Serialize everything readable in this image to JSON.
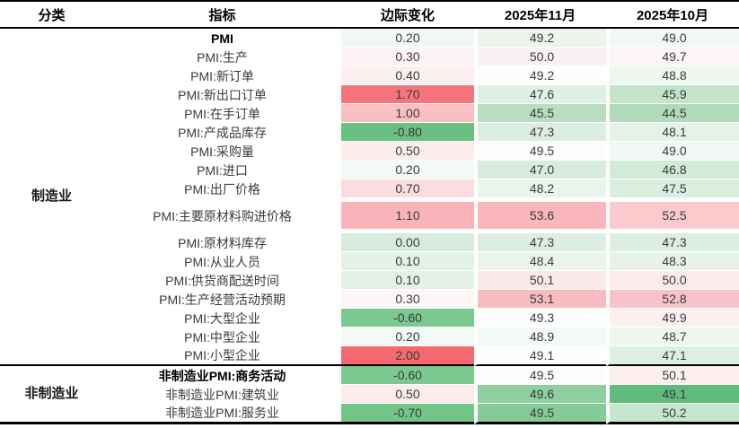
{
  "table": {
    "headers": {
      "category": "分类",
      "indicator": "指标",
      "change": "边际变化",
      "nov": "2025年11月",
      "oct": "2025年10月"
    },
    "sections": [
      {
        "category": "制造业",
        "rows": [
          {
            "indicator": "PMI",
            "bold": true,
            "change": "0.20",
            "change_bg": "#f1f8f3",
            "nov": "49.2",
            "nov_bg": "#ebf5ee",
            "oct": "49.0",
            "oct_bg": "#f2f8f3"
          },
          {
            "indicator": "PMI:生产",
            "change": "0.30",
            "change_bg": "#fdf3f4",
            "nov": "50.0",
            "nov_bg": "#fdf0f2",
            "oct": "49.7",
            "oct_bg": "#fdf4f5"
          },
          {
            "indicator": "PMI:新订单",
            "change": "0.40",
            "change_bg": "#fdeff0",
            "nov": "49.2",
            "nov_bg": "#fefefe",
            "oct": "48.8",
            "oct_bg": "#edf6ef"
          },
          {
            "indicator": "PMI:新出口订单",
            "change": "1.70",
            "change_bg": "#f5757d",
            "nov": "47.6",
            "nov_bg": "#dff0e4",
            "oct": "45.9",
            "oct_bg": "#c3e3cb"
          },
          {
            "indicator": "PMI:在手订单",
            "change": "1.00",
            "change_bg": "#f9c0c4",
            "nov": "45.5",
            "nov_bg": "#b8ddc1",
            "oct": "44.5",
            "oct_bg": "#b1dabb"
          },
          {
            "indicator": "PMI:产成品库存",
            "change": "-0.80",
            "change_bg": "#69c081",
            "nov": "47.3",
            "nov_bg": "#dceee1",
            "oct": "48.1",
            "oct_bg": "#e4f2e7"
          },
          {
            "indicator": "PMI:采购量",
            "change": "0.50",
            "change_bg": "#fcecec",
            "nov": "49.5",
            "nov_bg": "#fbfdfb",
            "oct": "49.0",
            "oct_bg": "#f2f8f3"
          },
          {
            "indicator": "PMI:进口",
            "change": "0.20",
            "change_bg": "#f3f9f4",
            "nov": "47.0",
            "nov_bg": "#d8ecdd",
            "oct": "46.8",
            "oct_bg": "#d2ead8"
          },
          {
            "indicator": "PMI:出厂价格",
            "change": "0.70",
            "change_bg": "#fadde0",
            "nov": "48.2",
            "nov_bg": "#e9f4ec",
            "oct": "47.5",
            "oct_bg": "#daeedf"
          },
          {
            "indicator": "PMI:主要原材料购进价格",
            "tall": true,
            "change": "1.10",
            "change_bg": "#f9b4b9",
            "nov": "53.6",
            "nov_bg": "#f9b7bb",
            "oct": "52.5",
            "oct_bg": "#facacd"
          },
          {
            "indicator": "PMI:原材料库存",
            "change": "0.00",
            "change_bg": "#d8ecdd",
            "nov": "47.3",
            "nov_bg": "#dceee1",
            "oct": "47.3",
            "oct_bg": "#dceee1"
          },
          {
            "indicator": "PMI:从业人员",
            "change": "0.10",
            "change_bg": "#e4f1e7",
            "nov": "48.4",
            "nov_bg": "#eaf4ec",
            "oct": "48.3",
            "oct_bg": "#e7f3ea"
          },
          {
            "indicator": "PMI:供货商配送时间",
            "change": "0.10",
            "change_bg": "#e4f1e7",
            "nov": "50.1",
            "nov_bg": "#fce9eb",
            "oct": "50.0",
            "oct_bg": "#fcebed"
          },
          {
            "indicator": "PMI:生产经营活动预期",
            "change": "0.30",
            "change_bg": "#fdf6f7",
            "nov": "53.1",
            "nov_bg": "#f8bcc0",
            "oct": "52.8",
            "oct_bg": "#f9c2c6"
          },
          {
            "indicator": "PMI:大型企业",
            "change": "-0.60",
            "change_bg": "#7cc891",
            "nov": "49.3",
            "nov_bg": "#fefefe",
            "oct": "49.9",
            "oct_bg": "#fdf0f1"
          },
          {
            "indicator": "PMI:中型企业",
            "change": "0.20",
            "change_bg": "#f4faf5",
            "nov": "48.9",
            "nov_bg": "#f3f9f4",
            "oct": "48.7",
            "oct_bg": "#f0f7f1"
          },
          {
            "indicator": "PMI:小型企业",
            "change": "2.00",
            "change_bg": "#f4696f",
            "nov": "49.1",
            "nov_bg": "#fefefe",
            "oct": "47.1",
            "oct_bg": "#ddefe2"
          }
        ]
      },
      {
        "category": "非制造业",
        "rows": [
          {
            "indicator": "非制造业PMI:商务活动",
            "bold": true,
            "change": "-0.60",
            "change_bg": "#7cc891",
            "nov": "49.5",
            "nov_bg": "#fdfbfb",
            "oct": "50.1",
            "oct_bg": "#fdeff0"
          },
          {
            "indicator": "非制造业PMI:建筑业",
            "change": "0.50",
            "change_bg": "#fcecec",
            "nov": "49.6",
            "nov_bg": "#8ecf9f",
            "oct": "49.1",
            "oct_bg": "#5fbc7b"
          },
          {
            "indicator": "非制造业PMI:服务业",
            "change": "-0.70",
            "change_bg": "#72c487",
            "nov": "49.5",
            "nov_bg": "#85cb98",
            "oct": "50.2",
            "oct_bg": "#c8e5cf"
          }
        ]
      }
    ]
  },
  "colors": {
    "increase_strong": "#f4696f",
    "decrease_strong": "#5fbc7b",
    "border": "#000000",
    "body_text": "#3a3a3a"
  },
  "chart_data": {
    "type": "table",
    "title": "",
    "columns": [
      "分类",
      "指标",
      "边际变化",
      "2025年11月",
      "2025年10月"
    ],
    "rows": [
      [
        "制造业",
        "PMI",
        0.2,
        49.2,
        49.0
      ],
      [
        "制造业",
        "PMI:生产",
        0.3,
        50.0,
        49.7
      ],
      [
        "制造业",
        "PMI:新订单",
        0.4,
        49.2,
        48.8
      ],
      [
        "制造业",
        "PMI:新出口订单",
        1.7,
        47.6,
        45.9
      ],
      [
        "制造业",
        "PMI:在手订单",
        1.0,
        45.5,
        44.5
      ],
      [
        "制造业",
        "PMI:产成品库存",
        -0.8,
        47.3,
        48.1
      ],
      [
        "制造业",
        "PMI:采购量",
        0.5,
        49.5,
        49.0
      ],
      [
        "制造业",
        "PMI:进口",
        0.2,
        47.0,
        46.8
      ],
      [
        "制造业",
        "PMI:出厂价格",
        0.7,
        48.2,
        47.5
      ],
      [
        "制造业",
        "PMI:主要原材料购进价格",
        1.1,
        53.6,
        52.5
      ],
      [
        "制造业",
        "PMI:原材料库存",
        0.0,
        47.3,
        47.3
      ],
      [
        "制造业",
        "PMI:从业人员",
        0.1,
        48.4,
        48.3
      ],
      [
        "制造业",
        "PMI:供货商配送时间",
        0.1,
        50.1,
        50.0
      ],
      [
        "制造业",
        "PMI:生产经营活动预期",
        0.3,
        53.1,
        52.8
      ],
      [
        "制造业",
        "PMI:大型企业",
        -0.6,
        49.3,
        49.9
      ],
      [
        "制造业",
        "PMI:中型企业",
        0.2,
        48.9,
        48.7
      ],
      [
        "制造业",
        "PMI:小型企业",
        2.0,
        49.1,
        47.1
      ],
      [
        "非制造业",
        "非制造业PMI:商务活动",
        -0.6,
        49.5,
        50.1
      ],
      [
        "非制造业",
        "非制造业PMI:建筑业",
        0.5,
        49.6,
        49.1
      ],
      [
        "非制造业",
        "非制造业PMI:服务业",
        -0.7,
        49.5,
        50.2
      ]
    ],
    "notes": "heatmap formatting: positive change / higher level = red, negative change / lower level = green"
  }
}
